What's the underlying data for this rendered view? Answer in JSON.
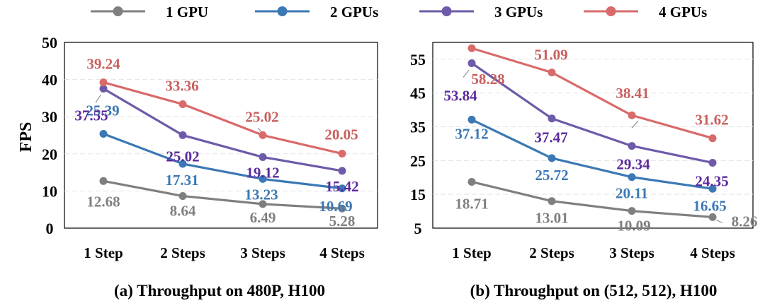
{
  "legend": [
    {
      "name": "1 GPU",
      "color": "#7f7f7f"
    },
    {
      "name": "2 GPUs",
      "color": "#3b78b5"
    },
    {
      "name": "3 GPUs",
      "color": "#6e5aa8"
    },
    {
      "name": "4 GPUs",
      "color": "#d96a6a"
    }
  ],
  "label_colors": {
    "1 GPU": "#7f7f7f",
    "2 GPUs": "#3b78b5",
    "3 GPUs": "#5b2a9e",
    "4 GPUs": "#c8605e"
  },
  "chart_data": [
    {
      "type": "line",
      "title": "(a) Throughput on 480P, H100",
      "ylabel": "FPS",
      "xlabel": "",
      "categories": [
        "1 Step",
        "2 Steps",
        "3 Steps",
        "4 Steps"
      ],
      "ylim": [
        0,
        50
      ],
      "yticks": [
        "0",
        "10",
        "20",
        "30",
        "40",
        "50"
      ],
      "grid": true,
      "series": [
        {
          "name": "1 GPU",
          "values": [
            12.68,
            8.64,
            6.49,
            5.28
          ],
          "labels": [
            "12.68",
            "8.64",
            "6.49",
            "5.28"
          ]
        },
        {
          "name": "2 GPUs",
          "values": [
            25.39,
            17.31,
            13.23,
            10.69
          ],
          "labels": [
            "25.39",
            "17.31",
            "13.23",
            "10.69"
          ]
        },
        {
          "name": "3 GPUs",
          "values": [
            37.55,
            25.02,
            19.12,
            15.42
          ],
          "labels": [
            "37.55",
            "25.02",
            "19.12",
            "15.42"
          ]
        },
        {
          "name": "4 GPUs",
          "values": [
            39.24,
            33.36,
            25.02,
            20.05
          ],
          "labels": [
            "39.24",
            "33.36",
            "25.02",
            "20.05"
          ]
        }
      ]
    },
    {
      "type": "line",
      "title": "(b) Throughput on (512, 512), H100",
      "ylabel": "",
      "xlabel": "",
      "categories": [
        "1 Step",
        "2 Steps",
        "3 Steps",
        "4 Steps"
      ],
      "ylim": [
        5,
        60
      ],
      "yticks": [
        "5",
        "15",
        "25",
        "35",
        "45",
        "55"
      ],
      "grid": true,
      "series": [
        {
          "name": "1 GPU",
          "values": [
            18.71,
            13.01,
            10.09,
            8.26
          ],
          "labels": [
            "18.71",
            "13.01",
            "10.09",
            "8.26"
          ]
        },
        {
          "name": "2 GPUs",
          "values": [
            37.12,
            25.72,
            20.11,
            16.65
          ],
          "labels": [
            "37.12",
            "25.72",
            "20.11",
            "16.65"
          ]
        },
        {
          "name": "3 GPUs",
          "values": [
            53.84,
            37.47,
            29.34,
            24.35
          ],
          "labels": [
            "53.84",
            "37.47",
            "29.34",
            "24.35"
          ]
        },
        {
          "name": "4 GPUs",
          "values": [
            58.28,
            51.09,
            38.41,
            31.62
          ],
          "labels": [
            "58.28",
            "51.09",
            "38.41",
            "31.62"
          ]
        }
      ]
    }
  ]
}
